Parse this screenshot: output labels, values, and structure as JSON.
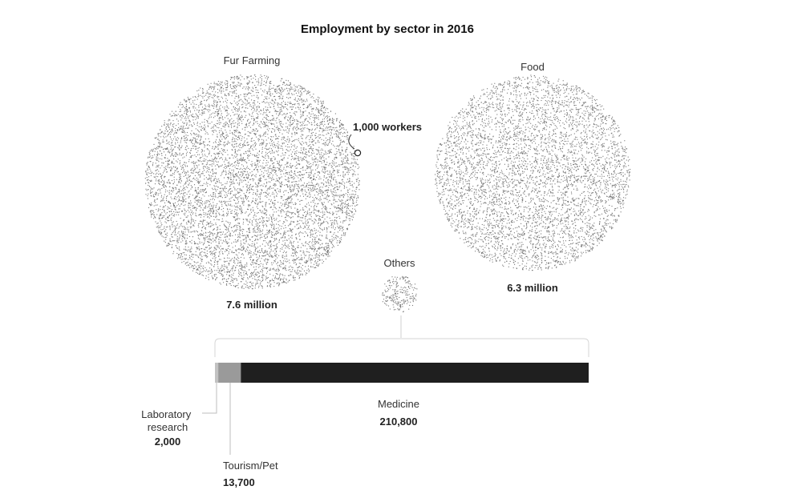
{
  "chart_data": {
    "type": "dot-density bubbles with stacked bar",
    "title": "Employment by sector in 2016",
    "unit_note": "1,000 workers",
    "bubbles": [
      {
        "name": "Fur Farming",
        "value": 7600000,
        "value_label": "7.6 million"
      },
      {
        "name": "Food",
        "value": 6300000,
        "value_label": "6.3 million"
      },
      {
        "name": "Others",
        "value": 226500,
        "value_label": ""
      }
    ],
    "breakdown": {
      "parent": "Others",
      "segments": [
        {
          "name": "Laboratory research",
          "value": 2000,
          "value_label": "2,000",
          "color": "#c2c2c2"
        },
        {
          "name": "Tourism/Pet",
          "value": 13700,
          "value_label": "13,700",
          "color": "#9a9a9a"
        },
        {
          "name": "Medicine",
          "value": 210800,
          "value_label": "210,800",
          "color": "#1f1f1f"
        }
      ]
    }
  }
}
